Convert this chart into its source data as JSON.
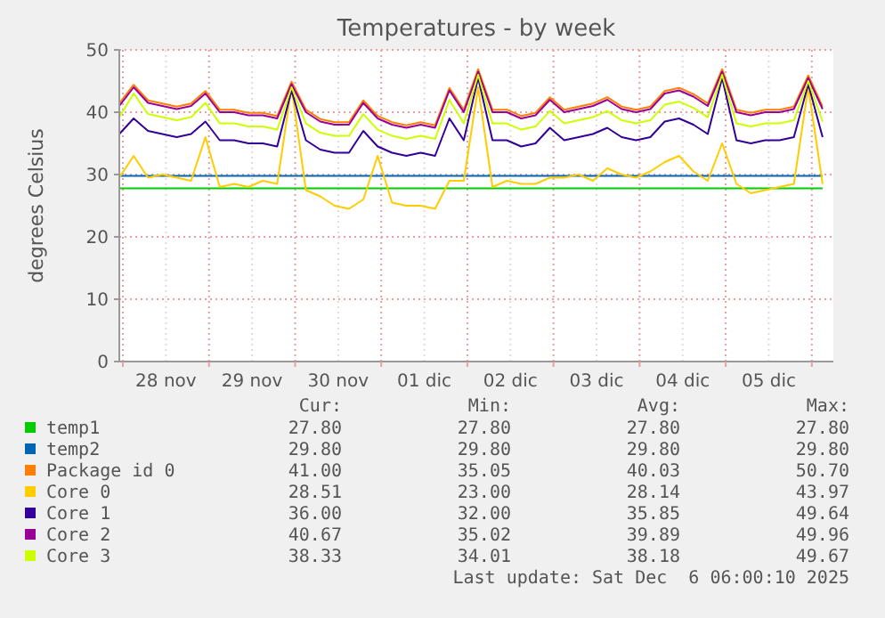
{
  "chart_data": {
    "type": "line",
    "title": "Temperatures - by week",
    "ylabel": "degrees Celsius",
    "x": [
      "2025-11-27T23:00",
      "2025-11-28T03:00",
      "2025-11-28T07:00",
      "2025-11-28T11:00",
      "2025-11-28T15:00",
      "2025-11-28T19:00",
      "2025-11-28T23:00",
      "2025-11-29T03:00",
      "2025-11-29T07:00",
      "2025-11-29T11:00",
      "2025-11-29T15:00",
      "2025-11-29T19:00",
      "2025-11-29T23:00",
      "2025-11-30T03:00",
      "2025-11-30T07:00",
      "2025-11-30T11:00",
      "2025-11-30T15:00",
      "2025-11-30T19:00",
      "2025-11-30T23:00",
      "2025-12-01T03:00",
      "2025-12-01T07:00",
      "2025-12-01T11:00",
      "2025-12-01T15:00",
      "2025-12-01T19:00",
      "2025-12-01T23:00",
      "2025-12-02T03:00",
      "2025-12-02T07:00",
      "2025-12-02T11:00",
      "2025-12-02T15:00",
      "2025-12-02T19:00",
      "2025-12-02T23:00",
      "2025-12-03T03:00",
      "2025-12-03T07:00",
      "2025-12-03T11:00",
      "2025-12-03T15:00",
      "2025-12-03T19:00",
      "2025-12-03T23:00",
      "2025-12-04T03:00",
      "2025-12-04T07:00",
      "2025-12-04T11:00",
      "2025-12-04T15:00",
      "2025-12-04T19:00",
      "2025-12-04T23:00",
      "2025-12-05T03:00",
      "2025-12-05T07:00",
      "2025-12-05T11:00",
      "2025-12-05T15:00",
      "2025-12-05T19:00",
      "2025-12-05T23:00",
      "2025-12-06T03:00"
    ],
    "xlim": [
      "2025-11-27T23:00",
      "2025-12-06T06:00"
    ],
    "xticks": [
      {
        "value": "2025-11-28T00:00",
        "label": null
      },
      {
        "value": "2025-11-28T12:00",
        "label": "28 nov"
      },
      {
        "value": "2025-11-29T00:00",
        "label": null
      },
      {
        "value": "2025-11-29T12:00",
        "label": "29 nov"
      },
      {
        "value": "2025-11-30T00:00",
        "label": null
      },
      {
        "value": "2025-11-30T12:00",
        "label": "30 nov"
      },
      {
        "value": "2025-12-01T00:00",
        "label": null
      },
      {
        "value": "2025-12-01T12:00",
        "label": "01 dic"
      },
      {
        "value": "2025-12-02T00:00",
        "label": null
      },
      {
        "value": "2025-12-02T12:00",
        "label": "02 dic"
      },
      {
        "value": "2025-12-03T00:00",
        "label": null
      },
      {
        "value": "2025-12-03T12:00",
        "label": "03 dic"
      },
      {
        "value": "2025-12-04T00:00",
        "label": null
      },
      {
        "value": "2025-12-04T12:00",
        "label": "04 dic"
      },
      {
        "value": "2025-12-05T00:00",
        "label": null
      },
      {
        "value": "2025-12-05T12:00",
        "label": "05 dic"
      },
      {
        "value": "2025-12-06T00:00",
        "label": null
      }
    ],
    "ylim": [
      0,
      50
    ],
    "yticks": [
      0,
      10,
      20,
      30,
      40,
      50
    ],
    "grid": true,
    "legend": "bottom",
    "series": [
      {
        "name": "temp1",
        "color": "#00cc00",
        "values": [
          27.8,
          27.8,
          27.8,
          27.8,
          27.8,
          27.8,
          27.8,
          27.8,
          27.8,
          27.8,
          27.8,
          27.8,
          27.8,
          27.8,
          27.8,
          27.8,
          27.8,
          27.8,
          27.8,
          27.8,
          27.8,
          27.8,
          27.8,
          27.8,
          27.8,
          27.8,
          27.8,
          27.8,
          27.8,
          27.8,
          27.8,
          27.8,
          27.8,
          27.8,
          27.8,
          27.8,
          27.8,
          27.8,
          27.8,
          27.8,
          27.8,
          27.8,
          27.8,
          27.8,
          27.8,
          27.8,
          27.8,
          27.8,
          27.8,
          27.8
        ]
      },
      {
        "name": "temp2",
        "color": "#0066b3",
        "values": [
          29.8,
          29.8,
          29.8,
          29.8,
          29.8,
          29.8,
          29.8,
          29.8,
          29.8,
          29.8,
          29.8,
          29.8,
          29.8,
          29.8,
          29.8,
          29.8,
          29.8,
          29.8,
          29.8,
          29.8,
          29.8,
          29.8,
          29.8,
          29.8,
          29.8,
          29.8,
          29.8,
          29.8,
          29.8,
          29.8,
          29.8,
          29.8,
          29.8,
          29.8,
          29.8,
          29.8,
          29.8,
          29.8,
          29.8,
          29.8,
          29.8,
          29.8,
          29.8,
          29.8,
          29.8,
          29.8,
          29.8,
          29.8,
          29.8,
          29.8
        ]
      },
      {
        "name": "Package id 0",
        "color": "#ff8000",
        "values": [
          41.4,
          44.4,
          41.9,
          41.4,
          40.9,
          41.4,
          43.4,
          40.4,
          40.4,
          39.9,
          39.9,
          39.4,
          44.9,
          40.4,
          38.9,
          38.4,
          38.4,
          41.9,
          39.4,
          38.4,
          37.9,
          38.4,
          37.9,
          43.9,
          40.4,
          46.9,
          40.4,
          40.4,
          39.4,
          39.9,
          42.4,
          40.4,
          40.9,
          41.4,
          42.4,
          40.9,
          40.4,
          40.9,
          43.4,
          43.9,
          42.9,
          41.4,
          46.9,
          40.4,
          39.9,
          40.4,
          40.4,
          40.9,
          45.9,
          40.9
        ]
      },
      {
        "name": "Core 0",
        "color": "#ffcc00",
        "values": [
          29.5,
          33,
          29.5,
          30,
          29.5,
          29,
          36,
          28,
          28.5,
          28,
          29,
          28.5,
          44,
          27.5,
          26.5,
          25,
          24.5,
          26,
          33,
          25.5,
          25,
          25,
          24.5,
          29,
          29,
          44,
          28,
          29,
          28.5,
          28.5,
          29.5,
          29.5,
          30,
          29,
          31,
          30,
          29.5,
          30.5,
          32,
          33,
          30.5,
          29,
          35,
          28.5,
          27,
          27.5,
          28,
          28.5,
          44,
          28.5
        ]
      },
      {
        "name": "Core 1",
        "color": "#330099",
        "values": [
          36.5,
          39,
          37,
          36.5,
          36,
          36.5,
          38.5,
          35.5,
          35.5,
          35,
          35,
          34.5,
          43.5,
          35.5,
          34,
          33.5,
          33.5,
          37,
          34.5,
          33.5,
          33,
          33.5,
          33,
          39,
          35.5,
          45.5,
          35.5,
          35.5,
          34.5,
          35,
          37.5,
          35.5,
          36,
          36.5,
          37.5,
          36,
          35.5,
          36,
          38.5,
          39,
          38,
          36.5,
          45.5,
          35.5,
          35,
          35.5,
          35.5,
          36,
          44.5,
          36
        ]
      },
      {
        "name": "Core 2",
        "color": "#990099",
        "values": [
          41,
          44,
          41.5,
          41,
          40.5,
          41,
          43,
          40,
          40,
          39.5,
          39.5,
          39,
          44.5,
          40,
          38.5,
          38,
          38,
          41.5,
          39,
          38,
          37.5,
          38,
          37.5,
          43.5,
          40,
          46.5,
          40,
          40,
          39,
          39.5,
          42,
          40,
          40.5,
          41,
          42,
          40.5,
          40,
          40.5,
          43,
          43.5,
          42.5,
          41,
          46.5,
          40,
          39.5,
          40,
          40,
          40.5,
          45.5,
          40.5
        ]
      },
      {
        "name": "Core 3",
        "color": "#ccff00",
        "values": [
          39.2,
          43,
          39.7,
          39.2,
          38.7,
          39.2,
          41.5,
          38.2,
          38.2,
          37.7,
          37.7,
          37.2,
          44,
          38.2,
          36.7,
          36.2,
          36.2,
          39.7,
          37.2,
          36.2,
          35.7,
          36.2,
          35.7,
          42,
          38.2,
          46,
          38.2,
          38.2,
          37.2,
          37.7,
          40.2,
          38.2,
          38.7,
          39.2,
          40.2,
          38.7,
          38.2,
          38.7,
          41.2,
          41.7,
          40.7,
          39.2,
          46,
          38.2,
          37.7,
          38.2,
          38.2,
          38.7,
          45,
          38.5
        ]
      }
    ],
    "annotations": [
      "Cur:",
      "Min:",
      "Avg:",
      "Max:",
      "27.80",
      "27.80",
      "27.80",
      "27.80",
      "29.80",
      "29.80",
      "29.80",
      "29.80",
      "41.00",
      "35.05",
      "40.03",
      "50.70",
      "28.51",
      "23.00",
      "28.14",
      "43.97",
      "36.00",
      "32.00",
      "35.85",
      "49.64",
      "40.67",
      "35.02",
      "39.89",
      "49.96",
      "38.33",
      "34.01",
      "38.18",
      "49.67",
      "Last update: Sat Dec  6 06:00:10 2025"
    ]
  }
}
